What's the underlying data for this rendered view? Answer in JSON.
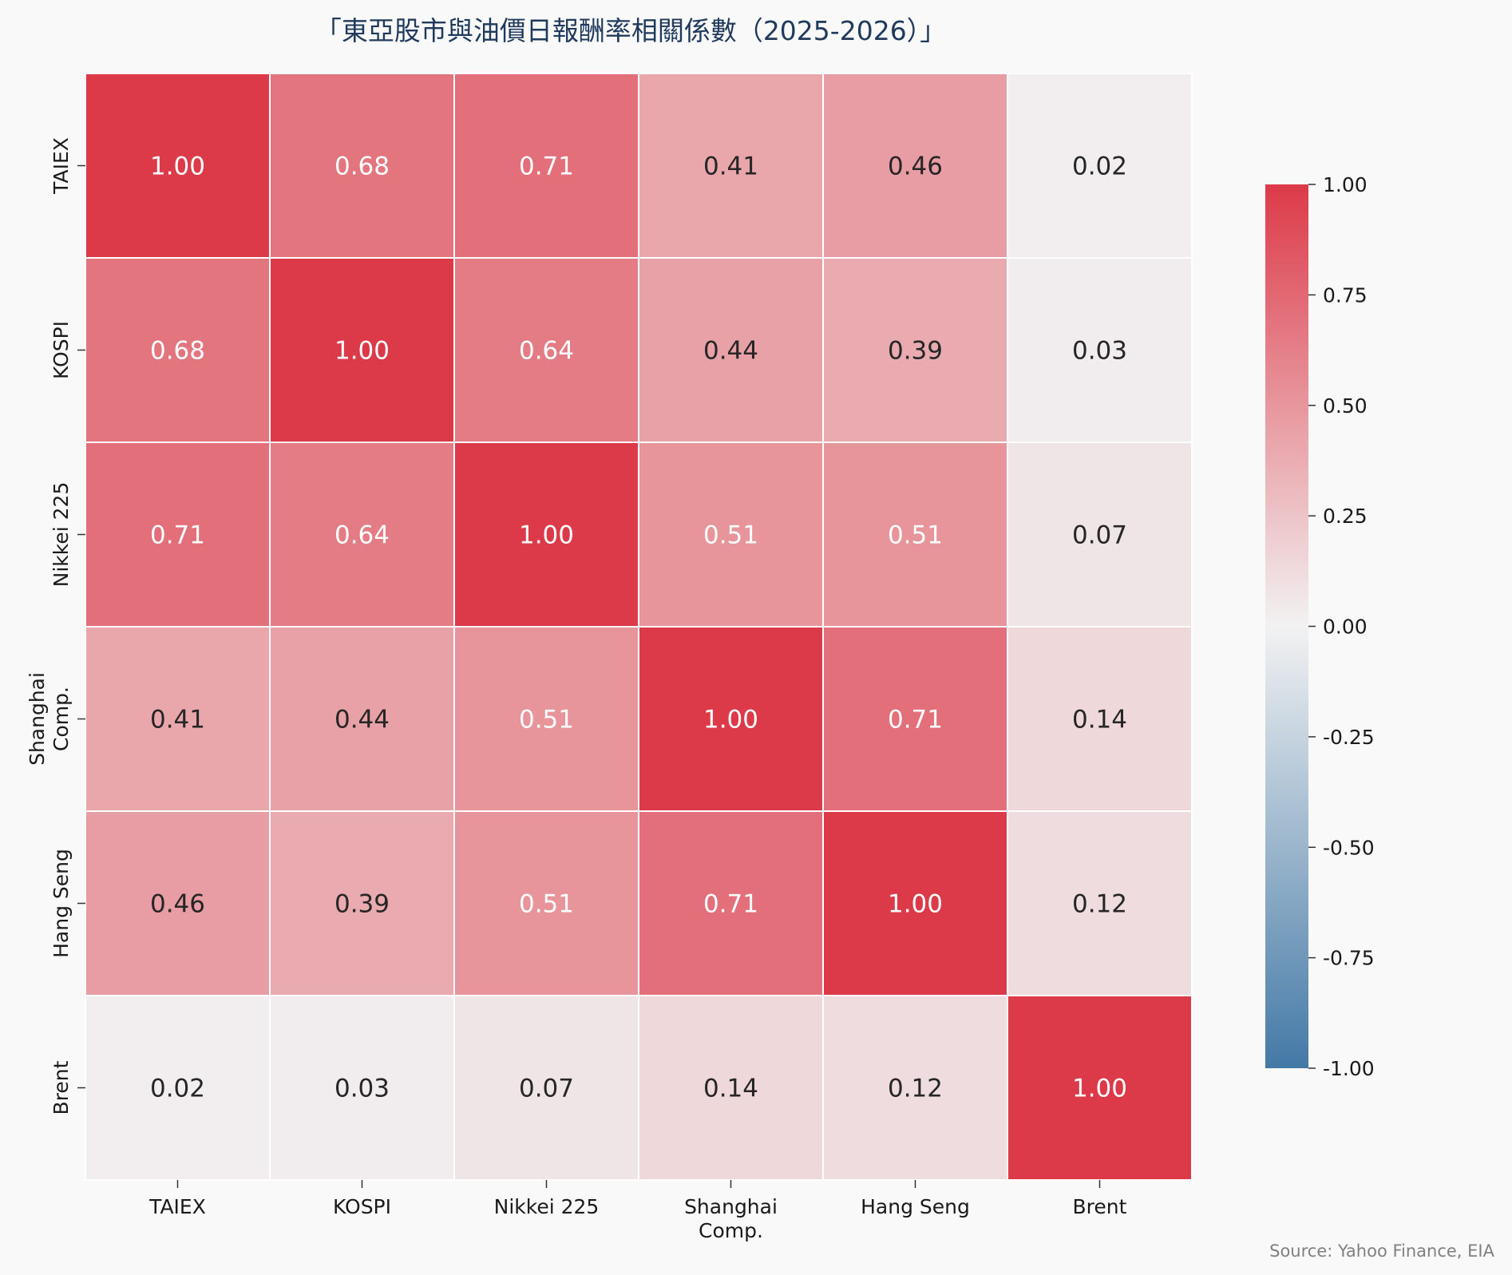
{
  "chart_data": {
    "type": "heatmap",
    "title": "「東亞股市與油價日報酬率相關係數（2025-2026）」",
    "row_labels": [
      "TAIEX",
      "KOSPI",
      "Nikkei 225",
      "Shanghai Comp.",
      "Hang Seng",
      "Brent"
    ],
    "col_labels": [
      "TAIEX",
      "KOSPI",
      "Nikkei 225",
      "Shanghai Comp.",
      "Hang Seng",
      "Brent"
    ],
    "values": [
      [
        1.0,
        0.68,
        0.71,
        0.41,
        0.46,
        0.02
      ],
      [
        0.68,
        1.0,
        0.64,
        0.44,
        0.39,
        0.03
      ],
      [
        0.71,
        0.64,
        1.0,
        0.51,
        0.51,
        0.07
      ],
      [
        0.41,
        0.44,
        0.51,
        1.0,
        0.71,
        0.14
      ],
      [
        0.46,
        0.39,
        0.51,
        0.71,
        1.0,
        0.12
      ],
      [
        0.02,
        0.03,
        0.07,
        0.14,
        0.12,
        1.0
      ]
    ],
    "value_format": "0.00",
    "colorbar": {
      "range": [
        -1.0,
        1.0
      ],
      "ticks": [
        "1.00",
        "0.75",
        "0.50",
        "0.25",
        "0.00",
        "-0.25",
        "-0.50",
        "-0.75",
        "-1.00"
      ],
      "colors": {
        "low": "#4379a6",
        "mid": "#f2f2f2",
        "high": "#dc3a48"
      }
    },
    "source": "Source: Yahoo Finance, EIA"
  }
}
